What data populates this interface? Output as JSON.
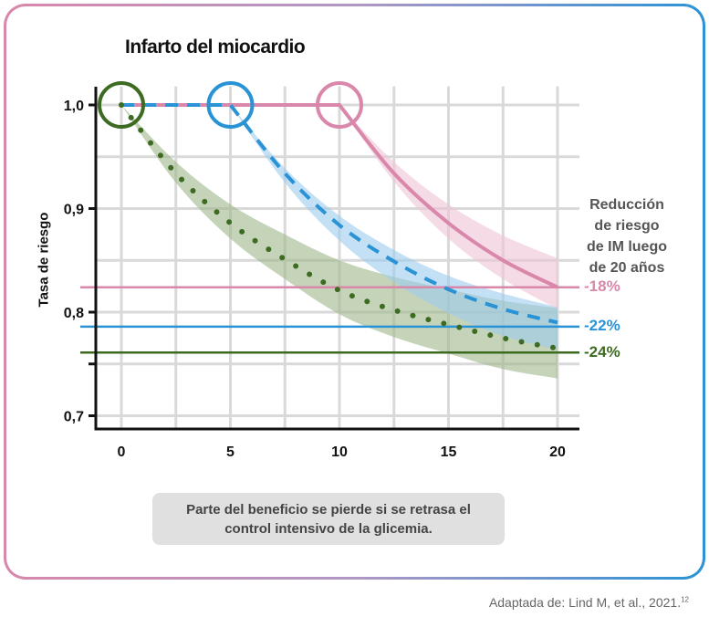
{
  "chart_data": {
    "type": "line",
    "title": "Infarto del miocardio",
    "ylabel": "Tasa de riesgo",
    "xlabel": "",
    "xlim": [
      -1.2,
      21
    ],
    "ylim": [
      0.686,
      1.018
    ],
    "xticks": [
      0,
      5,
      10,
      15,
      20
    ],
    "xtick_labels": [
      "0",
      "5",
      "10",
      "15",
      "20"
    ],
    "yticks": [
      1.0,
      0.9,
      0.8,
      0.75,
      0.7
    ],
    "ytick_labels": [
      "1,0",
      "0,9",
      "0,8",
      "",
      "0,7"
    ],
    "grid": true,
    "series": [
      {
        "start": 0,
        "style": "dotted",
        "color": "#3d6b22",
        "band_color": "#9fb88a",
        "x": [
          0,
          2.5,
          5,
          7.5,
          10,
          12.5,
          15,
          17.5,
          20
        ],
        "y": [
          1.0,
          0.934,
          0.886,
          0.851,
          0.821,
          0.802,
          0.788,
          0.775,
          0.765
        ],
        "lower": [
          1.0,
          0.925,
          0.871,
          0.832,
          0.798,
          0.776,
          0.76,
          0.745,
          0.736
        ],
        "upper": [
          1.0,
          0.945,
          0.904,
          0.875,
          0.85,
          0.834,
          0.822,
          0.811,
          0.804
        ]
      },
      {
        "start": 5,
        "style": "dashed",
        "color": "#2a93d5",
        "band_color": "#9ccbee",
        "x": [
          5,
          7.5,
          10,
          12.5,
          15,
          17.5,
          20
        ],
        "y": [
          1.0,
          0.934,
          0.884,
          0.849,
          0.822,
          0.803,
          0.79
        ],
        "lower": [
          1.0,
          0.925,
          0.869,
          0.829,
          0.799,
          0.777,
          0.764
        ],
        "upper": [
          1.0,
          0.939,
          0.893,
          0.86,
          0.835,
          0.818,
          0.805
        ]
      },
      {
        "start": 10,
        "style": "solid",
        "color": "#d987aa",
        "band_color": "#efc3d6",
        "x": [
          10,
          12.5,
          15,
          17.5,
          20
        ],
        "y": [
          1.0,
          0.934,
          0.886,
          0.85,
          0.824
        ],
        "lower": [
          1.0,
          0.926,
          0.871,
          0.832,
          0.803
        ],
        "upper": [
          1.0,
          0.945,
          0.904,
          0.874,
          0.852
        ]
      }
    ],
    "reference_lines": [
      {
        "y": 0.824,
        "label": "-18%",
        "color": "#d987aa"
      },
      {
        "y": 0.786,
        "label": "-22%",
        "color": "#2a93d5"
      },
      {
        "y": 0.761,
        "label": "-24%",
        "color": "#3d6b22"
      }
    ],
    "legend_title": "Reducción de riesgo de IM luego de 20 años"
  },
  "caption": "Parte del beneficio se pierde si se retrasa el control intensivo de la glicemia.",
  "source": {
    "text": "Adaptada de: Lind M, et al., 2021.",
    "ref": "12"
  },
  "colors": {
    "grid": "#d9d9d9",
    "axis": "#111111"
  }
}
